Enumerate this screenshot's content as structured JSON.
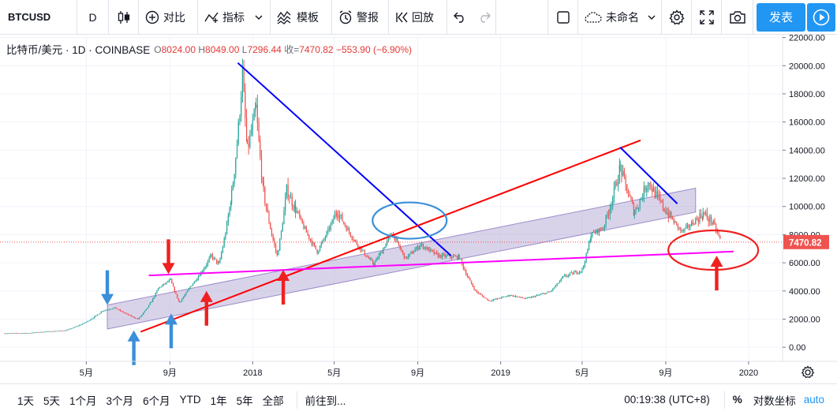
{
  "toolbar": {
    "symbol": "BTCUSD",
    "interval": "D",
    "compare_label": "对比",
    "indicators_label": "指标",
    "templates_label": "模板",
    "alert_label": "警报",
    "replay_label": "回放",
    "save_label": "未命名",
    "publish_label": "发表"
  },
  "legend": {
    "title": "比特币/美元 · 1D · COINBASE",
    "o_label": "O",
    "o": "8024.00",
    "h_label": "H",
    "h": "8049.00",
    "l_label": "L",
    "l": "7296.44",
    "c_label": "收=",
    "c": "7470.82",
    "change": "−553.90 (−6.90%)"
  },
  "bottom": {
    "ranges": [
      "1天",
      "5天",
      "1个月",
      "3个月",
      "6个月",
      "YTD",
      "1年",
      "5年",
      "全部"
    ],
    "goto_label": "前往到...",
    "clock": "00:19:38 (UTC+8)",
    "percent": "%",
    "log": "对数坐标",
    "auto": "auto"
  },
  "colors": {
    "accent": "#2196f3",
    "up": "#26a69a",
    "down": "#ef5350",
    "price_label": "#ef5350"
  },
  "icons": [
    "candle-style-icon",
    "plus-circle-icon",
    "indicator-icon",
    "templates-icon",
    "alarm-icon",
    "replay-icon",
    "undo-icon",
    "redo-icon",
    "layout-square-icon",
    "cloud-icon",
    "gear-icon",
    "fullscreen-icon",
    "camera-icon",
    "play-icon",
    "settings-gear-icon"
  ],
  "chart_data": {
    "type": "candlestick",
    "title": "比特币/美元 · 1D · COINBASE",
    "x": [
      "2017-01-01",
      "2017-02-01",
      "2017-03-01",
      "2017-04-01",
      "2017-05-01",
      "2017-05-25",
      "2017-06-12",
      "2017-07-16",
      "2017-08-15",
      "2017-09-02",
      "2017-09-15",
      "2017-10-01",
      "2017-11-01",
      "2017-11-12",
      "2017-12-01",
      "2017-12-17",
      "2017-12-24",
      "2018-01-06",
      "2018-01-17",
      "2018-02-06",
      "2018-02-20",
      "2018-03-05",
      "2018-04-06",
      "2018-05-05",
      "2018-06-01",
      "2018-06-28",
      "2018-07-25",
      "2018-08-14",
      "2018-09-05",
      "2018-10-01",
      "2018-11-01",
      "2018-11-25",
      "2018-12-15",
      "2019-01-15",
      "2019-02-07",
      "2019-03-15",
      "2019-04-03",
      "2019-05-01",
      "2019-05-14",
      "2019-06-01",
      "2019-06-26",
      "2019-07-17",
      "2019-08-06",
      "2019-09-01",
      "2019-09-25",
      "2019-10-26",
      "2019-11-10",
      "2019-11-22"
    ],
    "y": [
      990,
      1000,
      1100,
      1200,
      1800,
      2600,
      2800,
      2000,
      4200,
      4800,
      3200,
      4300,
      6500,
      5900,
      10900,
      19500,
      14000,
      17000,
      11000,
      6500,
      11200,
      9800,
      6800,
      9700,
      7500,
      5900,
      8200,
      6300,
      7300,
      6500,
      6400,
      4000,
      3300,
      3700,
      3450,
      3950,
      5000,
      5500,
      8000,
      8500,
      12800,
      9600,
      11800,
      9700,
      8200,
      9500,
      8800,
      7470
    ],
    "y_axis": {
      "range": [
        -1000,
        22200
      ],
      "ticks": [
        0,
        2000,
        4000,
        6000,
        8000,
        10000,
        12000,
        14000,
        16000,
        18000,
        20000,
        22000
      ],
      "tick_labels": [
        "0.00",
        "2000.00",
        "4000.00",
        "6000.00",
        "8000.00",
        "10000.00",
        "12000.00",
        "14000.00",
        "16000.00",
        "18000.00",
        "20000.00",
        "22000.00"
      ],
      "last_price": 7470.82,
      "last_price_label": "7470.82"
    },
    "x_axis": {
      "range": [
        "2016-12-25",
        "2020-02-20"
      ],
      "ticks": [
        "2017-05-01",
        "2017-09-01",
        "2018-01-01",
        "2018-05-01",
        "2018-09-01",
        "2019-01-01",
        "2019-05-01",
        "2019-09-01",
        "2020-01-01"
      ],
      "tick_labels": [
        "5月",
        "9月",
        "2018",
        "5月",
        "9月",
        "2019",
        "5月",
        "9月",
        "2020"
      ]
    },
    "grid": true,
    "drawings": {
      "channel": {
        "color": "#9c8cc8",
        "lower": [
          [
            "2017-06-01",
            1300
          ],
          [
            "2018-10-15",
            6400
          ]
        ],
        "upper": [
          [
            "2017-06-01",
            3000
          ],
          [
            "2019-10-15",
            11300
          ]
        ],
        "lower_extended": [
          [
            "2018-10-15",
            6400
          ],
          [
            "2019-10-15",
            9600
          ]
        ]
      },
      "lines": [
        {
          "color": "#0000ff",
          "points": [
            [
              "2017-12-10",
              20200
            ],
            [
              "2018-10-20",
              6500
            ]
          ]
        },
        {
          "color": "#ff0000",
          "points": [
            [
              "2017-07-20",
              1100
            ],
            [
              "2019-07-26",
              14700
            ]
          ]
        },
        {
          "color": "#ff00ff",
          "points": [
            [
              "2017-08-01",
              5100
            ],
            [
              "2019-12-10",
              6800
            ]
          ]
        },
        {
          "color": "#0000ff",
          "points": [
            [
              "2019-06-26",
              14200
            ],
            [
              "2019-09-18",
              10200
            ]
          ]
        }
      ],
      "ellipses": [
        {
          "color": "#3a8fd8",
          "center": [
            "2018-08-20",
            9000
          ]
        },
        {
          "color": "#ef2020",
          "center": [
            "2019-11-10",
            6900
          ]
        }
      ],
      "arrows": [
        {
          "color": "#3a8fd8",
          "dir": "down",
          "at": [
            "2017-06-01",
            3000
          ]
        },
        {
          "color": "#3a8fd8",
          "dir": "up",
          "at": [
            "2017-07-10",
            1200
          ]
        },
        {
          "color": "#3a8fd8",
          "dir": "up",
          "at": [
            "2017-09-03",
            2400
          ]
        },
        {
          "color": "#ef2020",
          "dir": "down",
          "at": [
            "2017-08-30",
            5200
          ]
        },
        {
          "color": "#ef2020",
          "dir": "up",
          "at": [
            "2017-10-25",
            4000
          ]
        },
        {
          "color": "#ef2020",
          "dir": "up",
          "at": [
            "2018-02-15",
            5500
          ]
        },
        {
          "color": "#ef2020",
          "dir": "up",
          "at": [
            "2019-11-15",
            6500
          ]
        }
      ]
    }
  }
}
